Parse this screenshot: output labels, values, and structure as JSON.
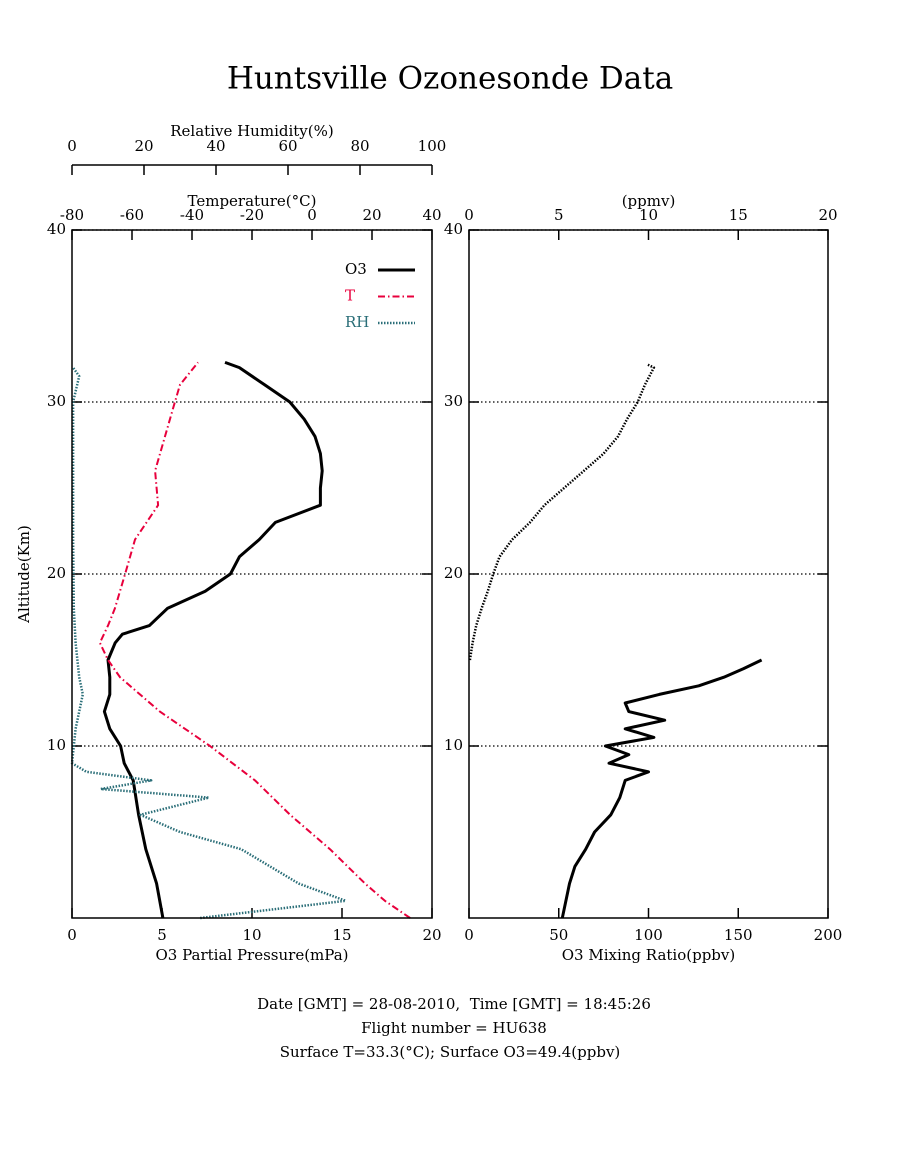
{
  "title": "Huntsville Ozonesonde Data",
  "chart_data": [
    {
      "type": "line",
      "ylabel": "Altitude(Km)",
      "ylim": [
        0,
        40
      ],
      "yticks": [
        10,
        20,
        30,
        40
      ],
      "grid": true,
      "xlabel": "O3 Partial Pressure(mPa)",
      "xlim": [
        0,
        20
      ],
      "xticks": [
        0,
        5,
        10,
        15,
        20
      ],
      "x2label": "Temperature(°C)",
      "x2lim": [
        -80,
        40
      ],
      "x2ticks": [
        -80,
        -60,
        -40,
        -20,
        0,
        20,
        40
      ],
      "x3label": "Relative Humidity(%)",
      "x3lim": [
        0,
        100
      ],
      "x3ticks": [
        0,
        20,
        40,
        60,
        80,
        100
      ],
      "legend": "upper right",
      "series": [
        {
          "name": "O3",
          "color": "#000000",
          "linestyle": "solid",
          "axis": "x",
          "altitude": [
            0,
            2,
            4,
            6,
            8,
            9,
            10,
            11,
            12,
            13,
            14,
            15,
            16,
            16.5,
            17,
            18,
            19,
            20,
            21,
            22,
            23,
            24,
            25,
            26,
            27,
            28,
            29,
            30,
            31,
            32,
            32.3
          ],
          "values": [
            5.05,
            4.7,
            4.1,
            3.7,
            3.4,
            2.9,
            2.7,
            2.1,
            1.8,
            2.1,
            2.1,
            2.0,
            2.4,
            2.8,
            4.3,
            5.3,
            7.4,
            8.8,
            9.3,
            10.4,
            11.3,
            13.8,
            13.8,
            13.9,
            13.8,
            13.5,
            12.9,
            12.1,
            10.7,
            9.3,
            8.5
          ]
        },
        {
          "name": "T",
          "color": "#e8003c",
          "linestyle": "dashdot",
          "axis": "x2",
          "altitude": [
            0,
            1,
            2,
            4,
            6,
            8,
            10,
            12,
            14,
            15,
            16,
            17,
            18,
            19,
            20,
            22,
            24,
            26,
            28,
            30,
            31,
            32.3
          ],
          "values": [
            32.7,
            24.3,
            17.7,
            6,
            -7.3,
            -19,
            -34,
            -50.7,
            -64,
            -68,
            -70.7,
            -68,
            -65.7,
            -64,
            -62.3,
            -59,
            -51.3,
            -52.3,
            -49,
            -45.7,
            -44,
            -38
          ]
        },
        {
          "name": "RH",
          "color": "#2a6e78",
          "linestyle": "dotted",
          "axis": "x3",
          "altitude": [
            0,
            1,
            2,
            3,
            4,
            5,
            6,
            7,
            7.5,
            8,
            8.5,
            9,
            11,
            13,
            14,
            16,
            18,
            22,
            26,
            30,
            31.5,
            32
          ],
          "values": [
            35.6,
            76,
            63,
            55,
            47,
            30,
            19,
            38,
            8,
            22,
            4,
            0,
            1,
            3,
            2,
            1,
            0.5,
            0.3,
            0.3,
            0.3,
            2,
            0.3
          ]
        }
      ]
    },
    {
      "type": "line",
      "ylim": [
        0,
        40
      ],
      "yticks": [
        10,
        20,
        30,
        40
      ],
      "grid": true,
      "xlabel": "O3 Mixing Ratio(ppbv)",
      "xlim": [
        0,
        200
      ],
      "xticks": [
        0,
        50,
        100,
        150,
        200
      ],
      "x2label": "(ppmv)",
      "x2lim": [
        0,
        20
      ],
      "x2ticks": [
        0,
        5,
        10,
        15,
        20
      ],
      "series": [
        {
          "color": "#000000",
          "linestyle": "solid",
          "axis": "x",
          "altitude": [
            0,
            2,
            3,
            4,
            5,
            6,
            7,
            8,
            8.5,
            9,
            9.5,
            10,
            10.5,
            11,
            11.5,
            12,
            12.5,
            13,
            13.5,
            14,
            14.5,
            15
          ],
          "values": [
            52,
            56,
            59,
            65,
            70,
            79,
            84,
            87,
            100,
            78,
            89,
            76,
            103,
            87,
            109,
            89,
            87,
            106,
            128,
            142,
            153,
            163
          ]
        },
        {
          "color": "#000000",
          "linestyle": "dotted",
          "axis": "x2",
          "altitude": [
            15,
            16,
            17,
            18,
            19,
            20,
            21,
            22,
            23,
            24,
            25,
            26,
            27,
            28,
            29,
            30,
            31,
            32,
            32.2
          ],
          "values": [
            0.05,
            0.2,
            0.4,
            0.7,
            1.05,
            1.35,
            1.7,
            2.4,
            3.4,
            4.2,
            5.3,
            6.4,
            7.5,
            8.3,
            8.8,
            9.4,
            9.8,
            10.3,
            9.9
          ]
        }
      ]
    }
  ],
  "footer": [
    "Date [GMT] = 28-08-2010,  Time [GMT] = 18:45:26",
    "Flight number = HU638",
    "Surface T=33.3(°C); Surface O3=49.4(ppbv)"
  ]
}
